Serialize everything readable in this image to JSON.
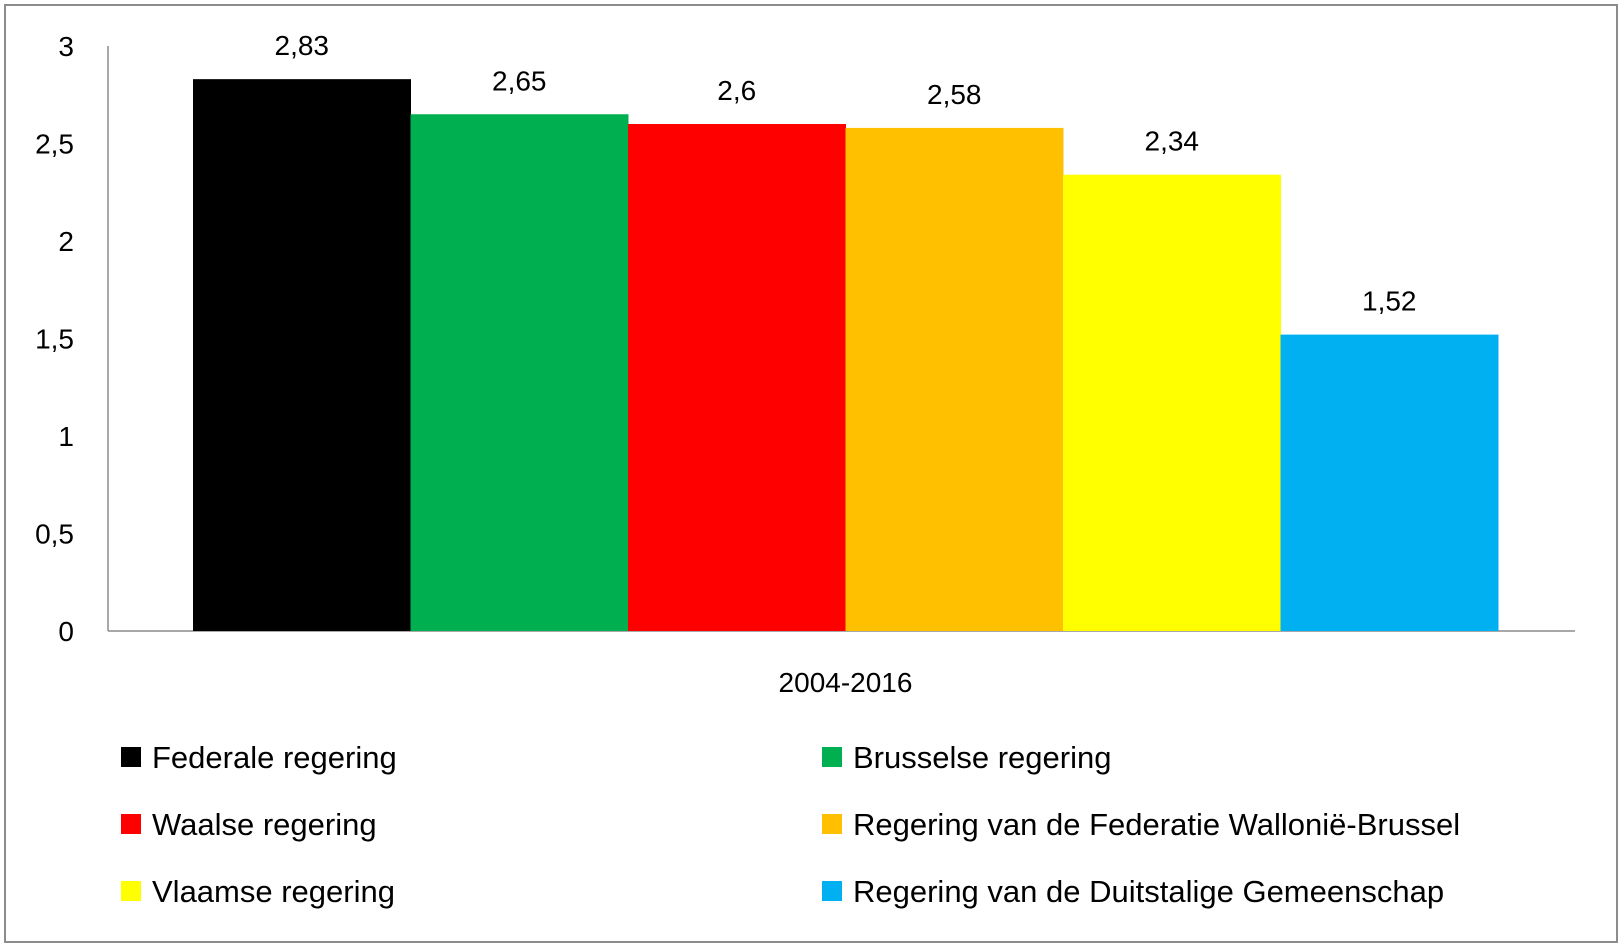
{
  "chart_data": {
    "type": "bar",
    "title": "",
    "xlabel": "",
    "ylabel": "",
    "categories": [
      "2004-2016"
    ],
    "ylim": [
      0,
      3
    ],
    "yticks": [
      0,
      0.5,
      1,
      1.5,
      2,
      2.5,
      3
    ],
    "ytick_labels": [
      "0",
      "0,5",
      "1",
      "1,5",
      "2",
      "2,5",
      "3"
    ],
    "grid": false,
    "legend_position": "bottom",
    "series": [
      {
        "name": "Federale regering",
        "values": [
          2.83
        ],
        "label": "2,83",
        "color": "#000000"
      },
      {
        "name": "Brusselse regering",
        "values": [
          2.65
        ],
        "label": "2,65",
        "color": "#00b050"
      },
      {
        "name": "Waalse regering",
        "values": [
          2.6
        ],
        "label": "2,6",
        "color": "#ff0000"
      },
      {
        "name": "Regering van de Federatie Wallonië-Brussel",
        "values": [
          2.58
        ],
        "label": "2,58",
        "color": "#ffc000"
      },
      {
        "name": "Vlaamse regering",
        "values": [
          2.34
        ],
        "label": "2,34",
        "color": "#ffff00"
      },
      {
        "name": "Regering van de Duitstalige Gemeenschap",
        "values": [
          1.52
        ],
        "label": "1,52",
        "color": "#00b0f0"
      }
    ]
  }
}
